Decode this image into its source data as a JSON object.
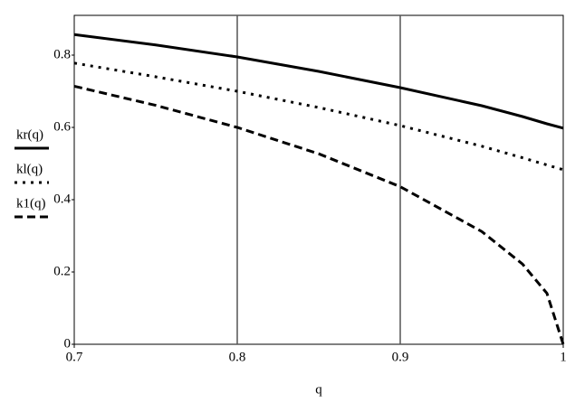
{
  "chart_data": {
    "type": "line",
    "x_label": "q",
    "x": [
      0.7,
      0.75,
      0.8,
      0.85,
      0.9,
      0.95,
      0.975,
      0.99,
      1
    ],
    "series": [
      {
        "name": "kr(q)",
        "color": "#000000",
        "style": "solid",
        "values": [
          0.857,
          0.828,
          0.795,
          0.755,
          0.71,
          0.66,
          0.63,
          0.61,
          0.598
        ]
      },
      {
        "name": "kl(q)",
        "color": "#000000",
        "style": "dotted",
        "values": [
          0.778,
          0.74,
          0.7,
          0.655,
          0.605,
          0.548,
          0.516,
          0.496,
          0.483
        ]
      },
      {
        "name": "k1(q)",
        "color": "#000000",
        "style": "dashed",
        "values": [
          0.714,
          0.661,
          0.6,
          0.527,
          0.436,
          0.312,
          0.222,
          0.141,
          0
        ]
      }
    ],
    "xlim": [
      0.7,
      1
    ],
    "ylim": [
      0,
      0.91
    ],
    "xticks": [
      0.7,
      0.8,
      0.9,
      1
    ],
    "yticks": [
      0,
      0.2,
      0.4,
      0.6,
      0.8
    ],
    "x_grid": true,
    "y_grid": false
  }
}
